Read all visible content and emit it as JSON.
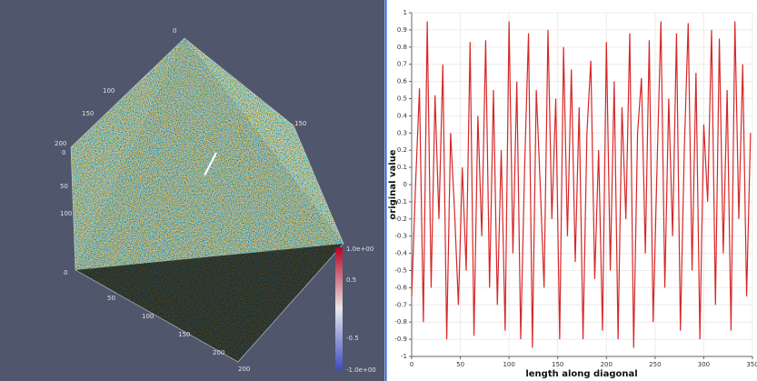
{
  "render_view": {
    "colorbar": {
      "labels": [
        "1.0e+00",
        "0.5",
        "-0.5",
        "-1.0e+00"
      ]
    },
    "axis_labels": [
      "0",
      "100",
      "150",
      "200",
      "0",
      "50",
      "100",
      "150",
      "200",
      "0",
      "50",
      "100",
      "150",
      "200"
    ]
  },
  "chart_data": {
    "type": "line",
    "x_label": "length along diagonal",
    "y_label": "original value",
    "x": [
      0,
      4,
      8,
      12,
      16,
      20,
      24,
      28,
      32,
      36,
      40,
      44,
      48,
      52,
      56,
      60,
      64,
      68,
      72,
      76,
      80,
      84,
      88,
      92,
      96,
      100,
      104,
      108,
      112,
      116,
      120,
      124,
      128,
      132,
      136,
      140,
      144,
      148,
      152,
      156,
      160,
      164,
      168,
      172,
      176,
      180,
      184,
      188,
      192,
      196,
      200,
      204,
      208,
      212,
      216,
      220,
      224,
      228,
      232,
      236,
      240,
      244,
      248,
      252,
      256,
      260,
      264,
      268,
      272,
      276,
      280,
      284,
      288,
      292,
      296,
      300,
      304,
      308,
      312,
      316,
      320,
      324,
      328,
      332,
      336,
      340,
      344,
      348
    ],
    "series": [
      {
        "color": "#d62728",
        "values": [
          -0.65,
          0.0,
          0.56,
          -0.8,
          0.95,
          -0.6,
          0.52,
          -0.2,
          0.7,
          -0.9,
          0.3,
          -0.15,
          -0.7,
          0.1,
          -0.5,
          0.83,
          -0.88,
          0.4,
          -0.3,
          0.84,
          -0.6,
          0.55,
          -0.7,
          0.2,
          -0.85,
          0.95,
          -0.4,
          0.6,
          -0.9,
          0.1,
          0.88,
          -0.95,
          0.55,
          0.0,
          -0.6,
          0.9,
          -0.2,
          0.5,
          -0.9,
          0.8,
          -0.3,
          0.67,
          -0.45,
          0.45,
          -0.9,
          0.3,
          0.72,
          -0.55,
          0.2,
          -0.85,
          0.83,
          -0.5,
          0.6,
          -0.9,
          0.45,
          -0.2,
          0.88,
          -0.95,
          0.3,
          0.62,
          -0.4,
          0.84,
          -0.8,
          0.1,
          0.95,
          -0.6,
          0.5,
          -0.3,
          0.88,
          -0.85,
          0.2,
          0.94,
          -0.5,
          0.65,
          -0.9,
          0.35,
          -0.1,
          0.9,
          -0.7,
          0.85,
          -0.4,
          0.55,
          -0.85,
          0.95,
          -0.2,
          0.7,
          -0.65,
          0.3
        ]
      }
    ],
    "xlim": [
      0,
      350
    ],
    "xticks": [
      0,
      50,
      100,
      150,
      200,
      250,
      300,
      350
    ],
    "ylim": [
      -1,
      1
    ],
    "yticks": [
      1,
      0.9,
      0.8,
      0.7,
      0.6,
      0.5,
      0.4,
      0.3,
      0.2,
      0.1,
      0,
      -0.1,
      -0.2,
      -0.3,
      -0.4,
      -0.5,
      -0.6,
      -0.7,
      -0.8,
      -0.9,
      -1
    ],
    "grid": true
  }
}
